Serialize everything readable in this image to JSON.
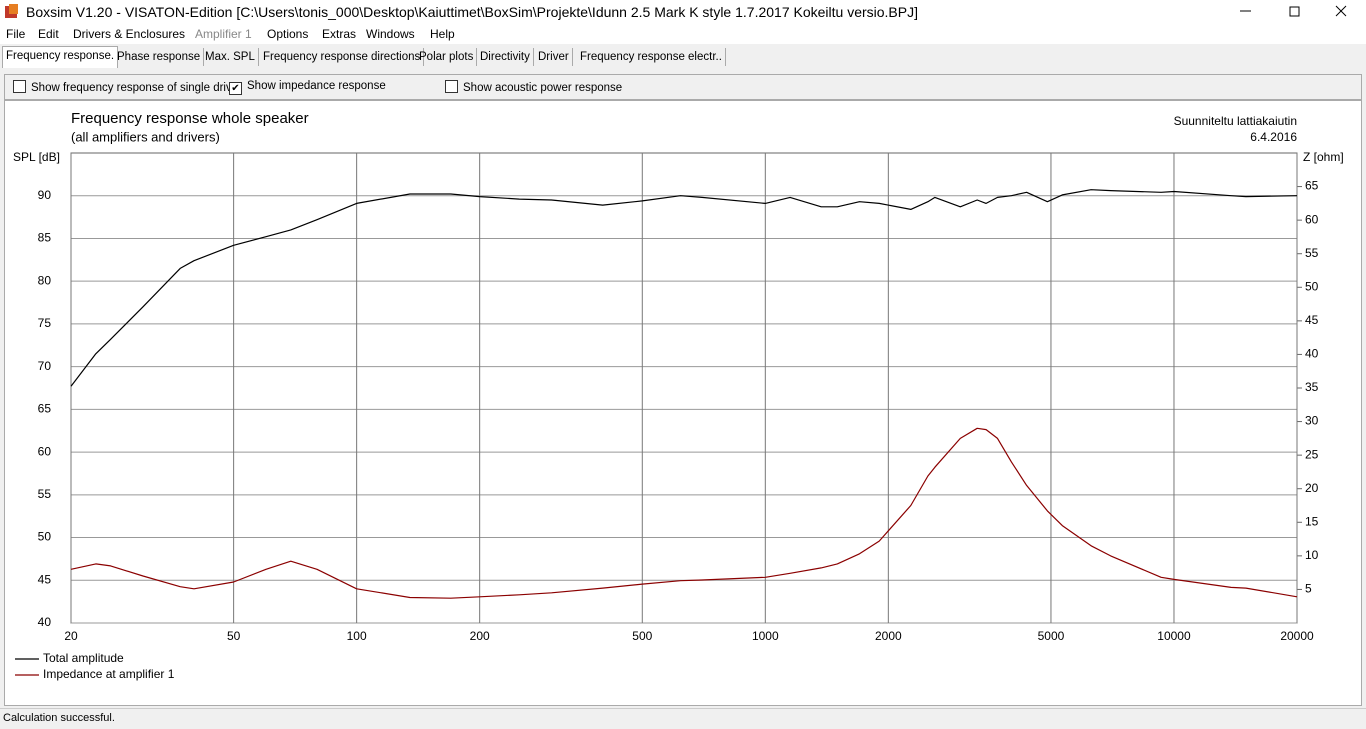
{
  "window": {
    "title": "Boxsim V1.20 - VISATON-Edition [C:\\Users\\tonis_000\\Desktop\\Kaiuttimet\\BoxSim\\Projekte\\Idunn 2.5 Mark K style 1.7.2017 Kokeiltu versio.BPJ]",
    "menu": [
      "File",
      "Edit",
      "Drivers & Enclosures",
      "Amplifier 1",
      "Options",
      "Extras",
      "Windows",
      "Help"
    ],
    "tabs": [
      "Frequency response.",
      "Phase response",
      "Max. SPL",
      "Frequency response directions",
      "Polar plots",
      "Directivity",
      "Driver",
      "Frequency response electr.."
    ],
    "checkboxes": [
      {
        "label": "Show frequency response of single drive",
        "checked": false
      },
      {
        "label": "Show impedance response",
        "checked": true
      },
      {
        "label": "Show acoustic power response",
        "checked": false
      }
    ],
    "status": "Calculation successful."
  },
  "chart_data": {
    "type": "line",
    "title": "Frequency response whole speaker",
    "subtitle": "(all amplifiers and drivers)",
    "note": [
      "Suunniteltu lattiakaiutin",
      "6.4.2016"
    ],
    "y_label": "SPL [dB]",
    "y2_label": "Z [ohm]",
    "xscale": "log",
    "grid": true,
    "legend": "bottom-left",
    "x": [
      20,
      23,
      25,
      30,
      37,
      40,
      50,
      60,
      69,
      80,
      100,
      135,
      170,
      200,
      250,
      300,
      400,
      500,
      620,
      700,
      1000,
      1150,
      1370,
      1500,
      1700,
      1900,
      2270,
      2500,
      2600,
      3000,
      3300,
      3470,
      3700,
      4000,
      4360,
      4900,
      5330,
      6270,
      7000,
      9300,
      10000,
      13800,
      15000,
      20000
    ],
    "xlim": [
      20,
      20000
    ],
    "xticks": [
      20,
      50,
      100,
      200,
      500,
      1000,
      2000,
      5000,
      10000,
      20000
    ],
    "ylim": [
      40,
      95
    ],
    "yticks": [
      40,
      45,
      50,
      55,
      60,
      65,
      70,
      75,
      80,
      85,
      90
    ],
    "y2lim": [
      0,
      70
    ],
    "y2ticks": [
      5,
      10,
      15,
      20,
      25,
      30,
      35,
      40,
      45,
      50,
      55,
      60,
      65
    ],
    "series": [
      {
        "name": "Total amplitude",
        "color": "#000000",
        "values": [
          67.7,
          71.5,
          73.2,
          77,
          81.5,
          82.4,
          84.2,
          85.2,
          86,
          87.2,
          89.1,
          90.2,
          90.2,
          89.9,
          89.6,
          89.5,
          88.9,
          89.4,
          90,
          89.8,
          89.1,
          89.8,
          88.7,
          88.7,
          89.3,
          89.1,
          88.4,
          89.3,
          89.8,
          88.7,
          89.5,
          89.1,
          89.8,
          90,
          90.4,
          89.3,
          90.1,
          90.7,
          90.6,
          90.4,
          90.5,
          90,
          89.9,
          90
        ]
      },
      {
        "name": "Impedance at amplifier 1",
        "color": "#8b0000",
        "axis": "y2",
        "values": [
          8.0,
          8.8,
          8.5,
          7.0,
          5.4,
          5.1,
          6.1,
          8.0,
          9.2,
          8.0,
          5.1,
          3.8,
          3.7,
          3.9,
          4.2,
          4.5,
          5.2,
          5.8,
          6.3,
          6.4,
          6.8,
          7.4,
          8.2,
          8.8,
          10.3,
          12.2,
          17.5,
          21.9,
          23.2,
          27.5,
          29,
          28.8,
          27.5,
          24,
          20.5,
          16.7,
          14.5,
          11.5,
          10,
          6.8,
          6.5,
          5.3,
          5.2,
          3.9
        ]
      }
    ]
  }
}
